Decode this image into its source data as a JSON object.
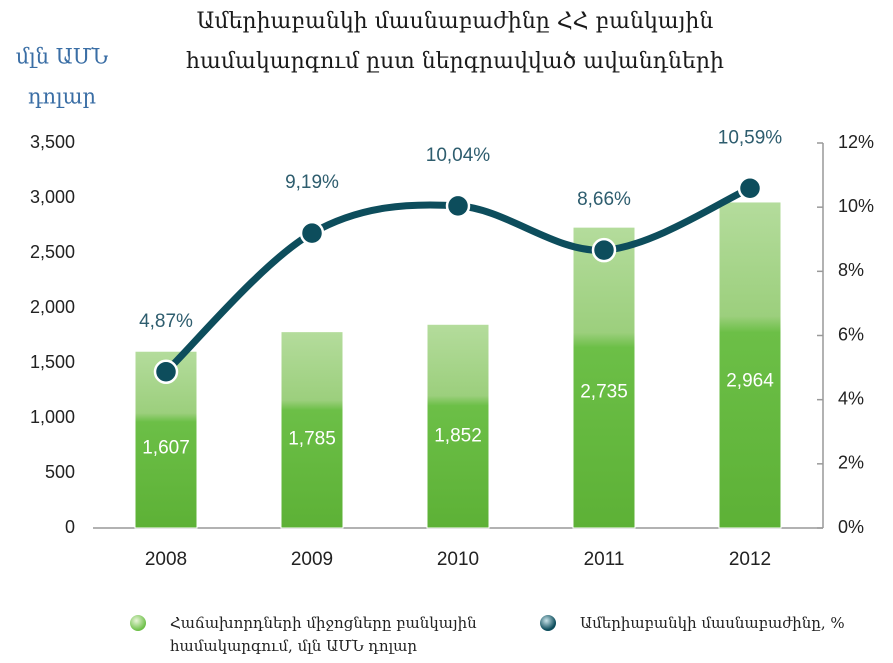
{
  "chart_data": {
    "type": "bar_line",
    "title_lines": [
      "Ամերիաբանկի մասնաբաժինը ՀՀ բանկային",
      "համակարգում ըստ ներգրավված ավանդների"
    ],
    "ylabel_lines": [
      "մլն ԱՄՆ",
      "դոլար"
    ],
    "categories": [
      "2008",
      "2009",
      "2010",
      "2011",
      "2012"
    ],
    "series": [
      {
        "name": "Հաճախորդների միջոցները բանկային համակարգում, մլն ԱՄՆ դոլար",
        "color": "#6cbf47",
        "type": "bar",
        "values": [
          1607,
          1785,
          1852,
          2735,
          2964
        ],
        "value_labels": [
          "1,607",
          "1,785",
          "1,852",
          "2,735",
          "2,964"
        ]
      },
      {
        "name": "Ամերիաբանկի մասնաբաժինը, %",
        "color": "#0d4d5c",
        "type": "line",
        "axis": "y2",
        "values": [
          4.87,
          9.19,
          10.04,
          8.66,
          10.59
        ],
        "value_labels": [
          "4,87%",
          "9,19%",
          "10,04%",
          "8,66%",
          "10,59%"
        ]
      }
    ],
    "ylim": [
      0,
      3500
    ],
    "yticks": [
      0,
      500,
      {
        "value": 1000,
        "label": "1,000"
      },
      {
        "value": 1500,
        "label": "1,500"
      },
      {
        "value": 2000,
        "label": "2,000"
      },
      {
        "value": 2500,
        "label": "2,500"
      },
      {
        "value": 3000,
        "label": "3,000"
      },
      {
        "value": 3500,
        "label": "3,500"
      }
    ],
    "y2lim": [
      0,
      12
    ],
    "y2ticks": [
      {
        "value": 0,
        "label": "0%"
      },
      {
        "value": 2,
        "label": "2%"
      },
      {
        "value": 4,
        "label": "4%"
      },
      {
        "value": 6,
        "label": "6%"
      },
      {
        "value": 8,
        "label": "8%"
      },
      {
        "value": 10,
        "label": "10%"
      },
      {
        "value": 12,
        "label": "12%"
      }
    ],
    "legend": "bottom"
  }
}
